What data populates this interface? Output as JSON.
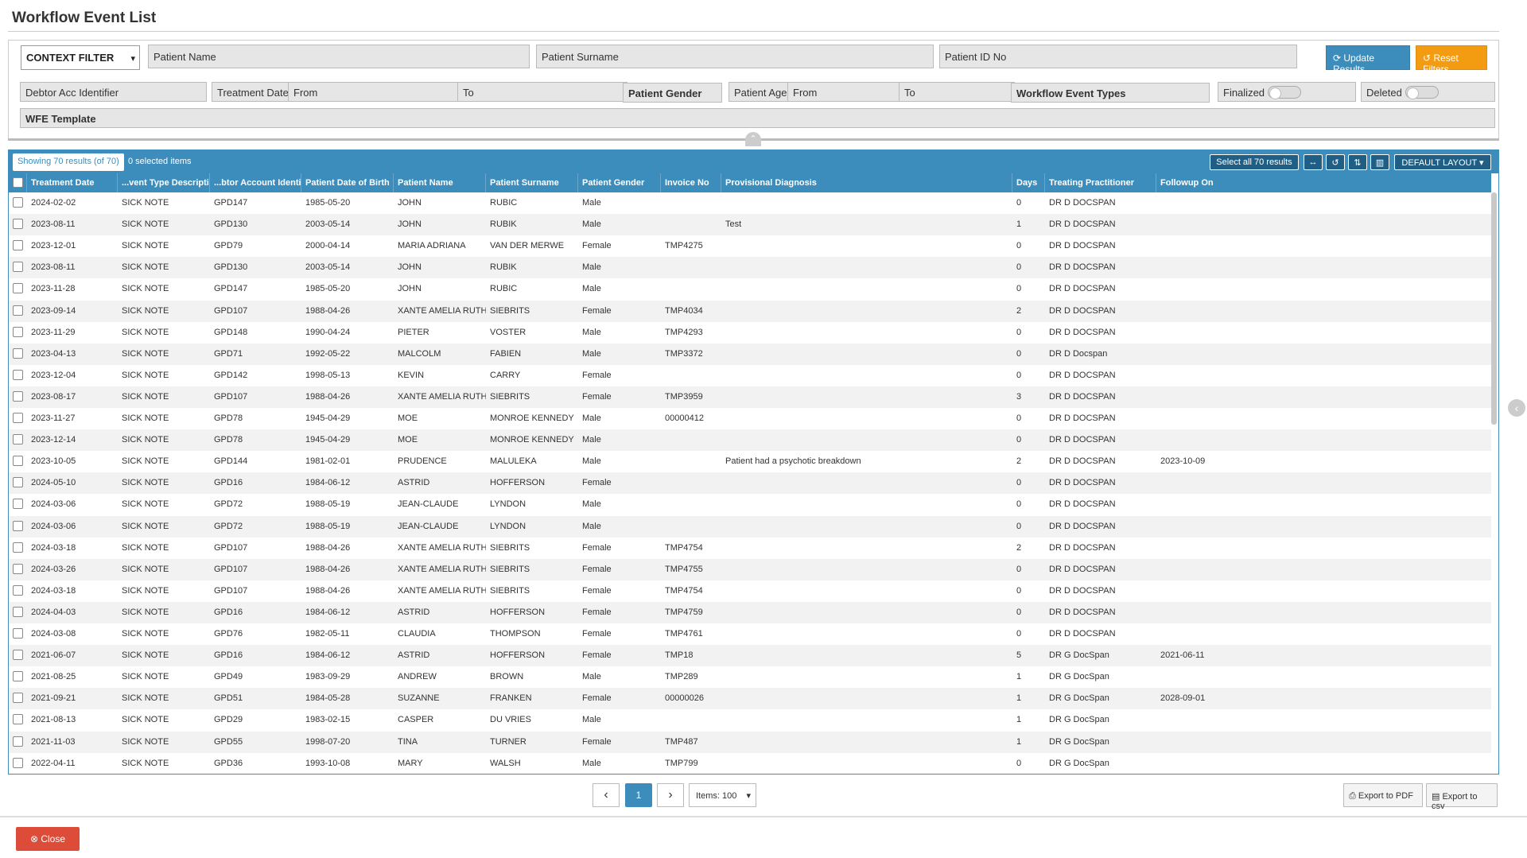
{
  "page_title": "Workflow Event List",
  "filters": {
    "context_filter": "CONTEXT FILTER",
    "patient_name": "Patient Name",
    "patient_surname": "Patient Surname",
    "patient_id": "Patient ID No",
    "update_label": "Update Results",
    "reset_label": "Reset Filters",
    "debtor_acc": "Debtor Acc Identifier",
    "treatment_date": "Treatment Date",
    "from": "From",
    "to": "To",
    "patient_gender": "Patient Gender",
    "patient_age": "Patient Age",
    "workflow_event_types": "Workflow Event Types",
    "finalized": "Finalized",
    "deleted": "Deleted",
    "wfe_template": "WFE Template"
  },
  "grid": {
    "showing": "Showing 70 results (of 70)",
    "selected": "0 selected items",
    "select_all": "Select all 70 results",
    "default_layout": "DEFAULT LAYOUT",
    "columns": [
      "Treatment Date",
      "...vent Type Description",
      "...btor Account Identifier",
      "Patient Date of Birth",
      "Patient Name",
      "Patient Surname",
      "Patient Gender",
      "Invoice No",
      "Provisional Diagnosis",
      "Days",
      "Treating Practitioner",
      "Followup On"
    ],
    "rows": [
      [
        "2024-02-02",
        "SICK NOTE",
        "GPD147",
        "1985-05-20",
        "JOHN",
        "RUBIC",
        "Male",
        "",
        "",
        "0",
        "DR D DOCSPAN",
        ""
      ],
      [
        "2023-08-11",
        "SICK NOTE",
        "GPD130",
        "2003-05-14",
        "JOHN",
        "RUBIK",
        "Male",
        "",
        "Test",
        "1",
        "DR D DOCSPAN",
        ""
      ],
      [
        "2023-12-01",
        "SICK NOTE",
        "GPD79",
        "2000-04-14",
        "MARIA ADRIANA",
        "VAN DER MERWE",
        "Female",
        "TMP4275",
        "",
        "0",
        "DR D DOCSPAN",
        ""
      ],
      [
        "2023-08-11",
        "SICK NOTE",
        "GPD130",
        "2003-05-14",
        "JOHN",
        "RUBIK",
        "Male",
        "",
        "",
        "0",
        "DR D DOCSPAN",
        ""
      ],
      [
        "2023-11-28",
        "SICK NOTE",
        "GPD147",
        "1985-05-20",
        "JOHN",
        "RUBIC",
        "Male",
        "",
        "",
        "0",
        "DR D DOCSPAN",
        ""
      ],
      [
        "2023-09-14",
        "SICK NOTE",
        "GPD107",
        "1988-04-26",
        "XANTE AMELIA RUTH",
        "SIEBRITS",
        "Female",
        "TMP4034",
        "",
        "2",
        "DR D DOCSPAN",
        ""
      ],
      [
        "2023-11-29",
        "SICK NOTE",
        "GPD148",
        "1990-04-24",
        "PIETER",
        "VOSTER",
        "Male",
        "TMP4293",
        "",
        "0",
        "DR D DOCSPAN",
        ""
      ],
      [
        "2023-04-13",
        "SICK NOTE",
        "GPD71",
        "1992-05-22",
        "MALCOLM",
        "FABIEN",
        "Male",
        "TMP3372",
        "",
        "0",
        "DR D Docspan",
        ""
      ],
      [
        "2023-12-04",
        "SICK NOTE",
        "GPD142",
        "1998-05-13",
        "KEVIN",
        "CARRY",
        "Female",
        "",
        "",
        "0",
        "DR D DOCSPAN",
        ""
      ],
      [
        "2023-08-17",
        "SICK NOTE",
        "GPD107",
        "1988-04-26",
        "XANTE AMELIA RUTH",
        "SIEBRITS",
        "Female",
        "TMP3959",
        "",
        "3",
        "DR D DOCSPAN",
        ""
      ],
      [
        "2023-11-27",
        "SICK NOTE",
        "GPD78",
        "1945-04-29",
        "MOE",
        "MONROE KENNEDY",
        "Male",
        "00000412",
        "",
        "0",
        "DR D DOCSPAN",
        ""
      ],
      [
        "2023-12-14",
        "SICK NOTE",
        "GPD78",
        "1945-04-29",
        "MOE",
        "MONROE KENNEDY",
        "Male",
        "",
        "",
        "0",
        "DR D DOCSPAN",
        ""
      ],
      [
        "2023-10-05",
        "SICK NOTE",
        "GPD144",
        "1981-02-01",
        "PRUDENCE",
        "MALULEKA",
        "Male",
        "",
        "Patient had a psychotic breakdown",
        "2",
        "DR D DOCSPAN",
        "2023-10-09"
      ],
      [
        "2024-05-10",
        "SICK NOTE",
        "GPD16",
        "1984-06-12",
        "ASTRID",
        "HOFFERSON",
        "Female",
        "",
        "",
        "0",
        "DR D DOCSPAN",
        ""
      ],
      [
        "2024-03-06",
        "SICK NOTE",
        "GPD72",
        "1988-05-19",
        "JEAN-CLAUDE",
        "LYNDON",
        "Male",
        "",
        "",
        "0",
        "DR D DOCSPAN",
        ""
      ],
      [
        "2024-03-06",
        "SICK NOTE",
        "GPD72",
        "1988-05-19",
        "JEAN-CLAUDE",
        "LYNDON",
        "Male",
        "",
        "",
        "0",
        "DR D DOCSPAN",
        ""
      ],
      [
        "2024-03-18",
        "SICK NOTE",
        "GPD107",
        "1988-04-26",
        "XANTE AMELIA RUTH",
        "SIEBRITS",
        "Female",
        "TMP4754",
        "",
        "2",
        "DR D DOCSPAN",
        ""
      ],
      [
        "2024-03-26",
        "SICK NOTE",
        "GPD107",
        "1988-04-26",
        "XANTE AMELIA RUTH",
        "SIEBRITS",
        "Female",
        "TMP4755",
        "",
        "0",
        "DR D DOCSPAN",
        ""
      ],
      [
        "2024-03-18",
        "SICK NOTE",
        "GPD107",
        "1988-04-26",
        "XANTE AMELIA RUTH",
        "SIEBRITS",
        "Female",
        "TMP4754",
        "",
        "0",
        "DR D DOCSPAN",
        ""
      ],
      [
        "2024-04-03",
        "SICK NOTE",
        "GPD16",
        "1984-06-12",
        "ASTRID",
        "HOFFERSON",
        "Female",
        "TMP4759",
        "",
        "0",
        "DR D DOCSPAN",
        ""
      ],
      [
        "2024-03-08",
        "SICK NOTE",
        "GPD76",
        "1982-05-11",
        "CLAUDIA",
        "THOMPSON",
        "Female",
        "TMP4761",
        "",
        "0",
        "DR D DOCSPAN",
        ""
      ],
      [
        "2021-06-07",
        "SICK NOTE",
        "GPD16",
        "1984-06-12",
        "ASTRID",
        "HOFFERSON",
        "Female",
        "TMP18",
        "",
        "5",
        "DR G DocSpan",
        "2021-06-11"
      ],
      [
        "2021-08-25",
        "SICK NOTE",
        "GPD49",
        "1983-09-29",
        "ANDREW",
        "BROWN",
        "Male",
        "TMP289",
        "",
        "1",
        "DR G DocSpan",
        ""
      ],
      [
        "2021-09-21",
        "SICK NOTE",
        "GPD51",
        "1984-05-28",
        "SUZANNE",
        "FRANKEN",
        "Female",
        "00000026",
        "",
        "1",
        "DR G DocSpan",
        "2028-09-01"
      ],
      [
        "2021-08-13",
        "SICK NOTE",
        "GPD29",
        "1983-02-15",
        "CASPER",
        "DU VRIES",
        "Male",
        "",
        "",
        "1",
        "DR G DocSpan",
        ""
      ],
      [
        "2021-11-03",
        "SICK NOTE",
        "GPD55",
        "1998-07-20",
        "TINA",
        "TURNER",
        "Female",
        "TMP487",
        "",
        "1",
        "DR G DocSpan",
        ""
      ],
      [
        "2022-04-11",
        "SICK NOTE",
        "GPD36",
        "1993-10-08",
        "MARY",
        "WALSH",
        "Male",
        "TMP799",
        "",
        "0",
        "DR G DocSpan",
        ""
      ]
    ]
  },
  "pager": {
    "current": "1",
    "items": "Items: 100"
  },
  "export": {
    "pdf": "Export to PDF",
    "csv": "Export to csv"
  },
  "close_label": "Close"
}
